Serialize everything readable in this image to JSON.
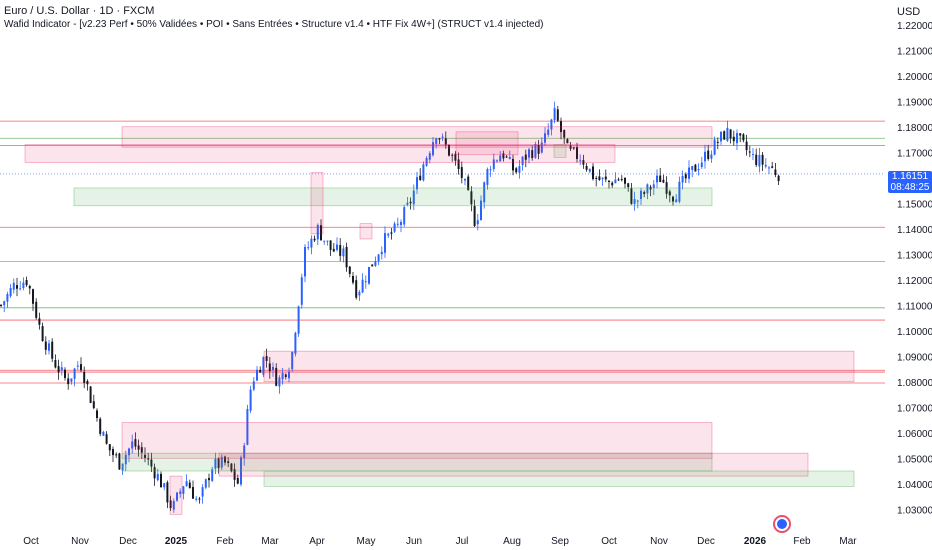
{
  "header": {
    "title": "Euro / U.S. Dollar · 1D · FXCM",
    "indicator": "Wafid Indicator - [v2.23 Perf • 50% Validées • POI • Sans Entrées • Structure v1.4 • HTF Fix 4W+] (STRUCT v1.4 injected)"
  },
  "axis": {
    "currency": "USD"
  },
  "last_price": {
    "value": "1.16151",
    "countdown": "08:48:25",
    "color": "#2962ff"
  },
  "colors": {
    "up": "#2962ff",
    "down": "#131722",
    "resistance": "#f23645",
    "support": "#4caf50"
  },
  "icons": {
    "event": "economic-event-icon"
  },
  "chart_data": {
    "type": "candlestick",
    "symbol": "EURUSD",
    "timeframe": "1D",
    "ylim": [
      1.025,
      1.225
    ],
    "y_ticks": [
      "1.22000",
      "1.21000",
      "1.20000",
      "1.19000",
      "1.18000",
      "1.17000",
      "1.16000",
      "1.15000",
      "1.14000",
      "1.13000",
      "1.12000",
      "1.11000",
      "1.10000",
      "1.09000",
      "1.08000",
      "1.07000",
      "1.06000",
      "1.05000",
      "1.04000",
      "1.03000"
    ],
    "x_ticks": [
      "Oct",
      "Nov",
      "Dec",
      "2025",
      "Feb",
      "Mar",
      "Apr",
      "May",
      "Jun",
      "Jul",
      "Aug",
      "Sep",
      "Oct",
      "Nov",
      "Dec",
      "2026",
      "Feb",
      "Mar"
    ],
    "x_tick_bold": [
      "2025",
      "2026"
    ],
    "resistance_levels": [
      1.1822,
      1.1726,
      1.1406,
      1.1042,
      1.0845,
      1.0838,
      1.0795
    ],
    "support_levels": [
      1.1755,
      1.1272,
      1.109
    ],
    "path": [
      [
        "Sep",
        1.11
      ],
      [
        "Sep",
        1.118
      ],
      [
        "Oct",
        1.12
      ],
      [
        "Oct",
        1.1
      ],
      [
        "Oct",
        1.088
      ],
      [
        "Oct",
        1.08
      ],
      [
        "Nov",
        1.088
      ],
      [
        "Nov",
        1.07
      ],
      [
        "Nov",
        1.055
      ],
      [
        "Nov",
        1.048
      ],
      [
        "Dec",
        1.056
      ],
      [
        "Dec",
        1.05
      ],
      [
        "Dec",
        1.042
      ],
      [
        "2025",
        1.03
      ],
      [
        "2025",
        1.042
      ],
      [
        "Feb",
        1.032
      ],
      [
        "Feb",
        1.047
      ],
      [
        "Feb",
        1.048
      ],
      [
        "Mar",
        1.04
      ],
      [
        "Mar",
        1.08
      ],
      [
        "Mar",
        1.09
      ],
      [
        "Mar",
        1.08
      ],
      [
        "Apr",
        1.088
      ],
      [
        "Apr",
        1.13
      ],
      [
        "Apr",
        1.14
      ],
      [
        "Apr",
        1.132
      ],
      [
        "May",
        1.13
      ],
      [
        "May",
        1.115
      ],
      [
        "May",
        1.125
      ],
      [
        "May",
        1.135
      ],
      [
        "Jun",
        1.14
      ],
      [
        "Jun",
        1.15
      ],
      [
        "Jun",
        1.165
      ],
      [
        "Jul",
        1.178
      ],
      [
        "Jul",
        1.17
      ],
      [
        "Jul",
        1.16
      ],
      [
        "Aug",
        1.142
      ],
      [
        "Aug",
        1.165
      ],
      [
        "Aug",
        1.17
      ],
      [
        "Aug",
        1.162
      ],
      [
        "Sep",
        1.17
      ],
      [
        "Sep",
        1.172
      ],
      [
        "Sep",
        1.185
      ],
      [
        "Sep",
        1.17
      ],
      [
        "Oct",
        1.168
      ],
      [
        "Oct",
        1.16
      ],
      [
        "Oct",
        1.158
      ],
      [
        "Oct",
        1.16
      ],
      [
        "Nov",
        1.15
      ],
      [
        "Nov",
        1.155
      ],
      [
        "Nov",
        1.16
      ],
      [
        "Dec",
        1.153
      ],
      [
        "Dec",
        1.16
      ],
      [
        "Dec",
        1.166
      ],
      [
        "Dec",
        1.172
      ],
      [
        "Dec",
        1.178
      ],
      [
        "2026",
        1.174
      ],
      [
        "2026",
        1.168
      ],
      [
        "2026",
        1.165
      ],
      [
        "2026",
        1.1615
      ]
    ],
    "poi_zones": [
      {
        "kind": "bear",
        "x_range": [
          "Jul",
          "Aug"
        ],
        "y_range": [
          1.169,
          1.178
        ]
      },
      {
        "kind": "bull",
        "x_range": [
          "Sep",
          "Sep"
        ],
        "y_range": [
          1.168,
          1.173
        ]
      },
      {
        "kind": "bear",
        "x_range": [
          "Oct",
          "Oct"
        ],
        "y_range": [
          1.166,
          1.173
        ]
      },
      {
        "kind": "bull",
        "x_range": [
          "Nov",
          "Dec"
        ],
        "y_range": [
          1.149,
          1.156
        ]
      },
      {
        "kind": "bear",
        "x_range": [
          "Dec",
          "Dec"
        ],
        "y_range": [
          1.172,
          1.18
        ]
      },
      {
        "kind": "bear",
        "x_range": [
          "May",
          "May"
        ],
        "y_range": [
          1.136,
          1.142
        ]
      },
      {
        "kind": "bear",
        "x_range": [
          "Apr",
          "Apr"
        ],
        "y_range": [
          1.138,
          1.162
        ]
      },
      {
        "kind": "bear",
        "x_range": [
          "Dec",
          "Dec"
        ],
        "y_range": [
          1.05,
          1.064
        ]
      },
      {
        "kind": "bull",
        "x_range": [
          "Dec",
          "Dec"
        ],
        "y_range": [
          1.045,
          1.052
        ]
      },
      {
        "kind": "bear",
        "x_range": [
          "Feb",
          "Feb"
        ],
        "y_range": [
          1.043,
          1.052
        ]
      },
      {
        "kind": "bear",
        "x_range": [
          "2025",
          "2025"
        ],
        "y_range": [
          1.028,
          1.043
        ]
      },
      {
        "kind": "bear",
        "x_range": [
          "Mar",
          "Mar"
        ],
        "y_range": [
          1.08,
          1.092
        ]
      },
      {
        "kind": "bull",
        "x_range": [
          "Mar",
          "Mar"
        ],
        "y_range": [
          1.039,
          1.045
        ]
      }
    ]
  }
}
